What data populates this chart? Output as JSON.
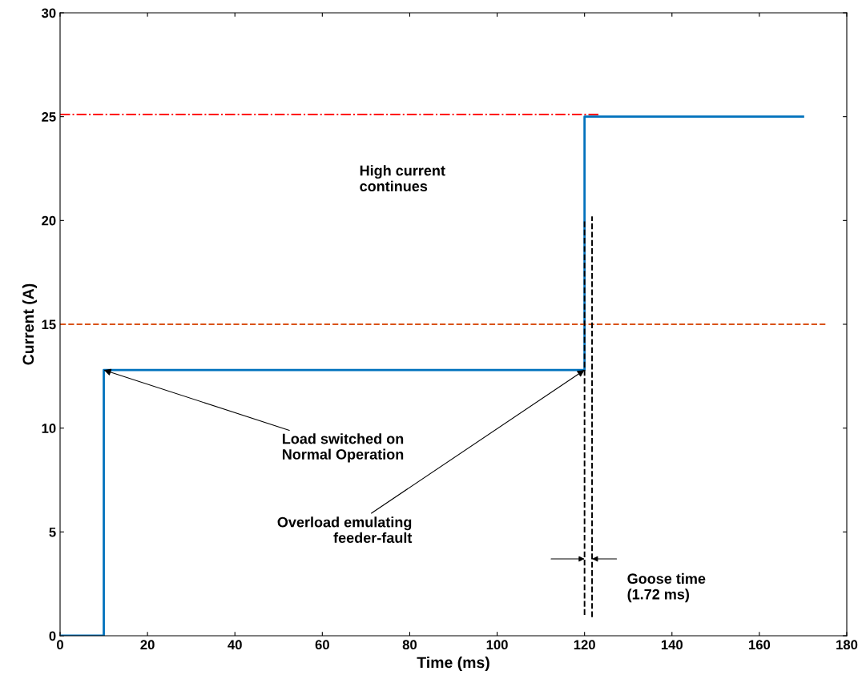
{
  "chart_data": {
    "type": "step",
    "xlabel": "Time (ms)",
    "ylabel": "Current (A)",
    "xlim": [
      0,
      180
    ],
    "xticks": [
      0,
      20,
      40,
      60,
      80,
      100,
      120,
      140,
      160,
      180
    ],
    "ylim": [
      0,
      30
    ],
    "yticks": [
      0,
      5,
      10,
      15,
      20,
      25,
      30
    ],
    "grid": false,
    "legend": false,
    "marker": "none",
    "series": [
      {
        "color": "#0072bd",
        "line_style": "solid",
        "x": [
          0,
          10,
          120,
          170
        ],
        "values": [
          0,
          12.8,
          25,
          25
        ]
      },
      {
        "type": "line",
        "color": "#d95319",
        "line_style": "dashed",
        "x": [
          0,
          175.4
        ],
        "values": [
          15,
          15
        ]
      },
      {
        "type": "line",
        "color": "#ff0000",
        "line_style": "dashdot",
        "x": [
          0,
          123.7
        ],
        "values": [
          25.1,
          25.1
        ]
      },
      {
        "type": "line",
        "color": "#000000",
        "line_style": "dashed",
        "x": [
          120,
          120
        ],
        "values": [
          1,
          20
        ]
      },
      {
        "type": "line",
        "color": "#000000",
        "line_style": "dashed",
        "x": [
          121.72,
          121.72
        ],
        "values": [
          0.9,
          20.2
        ]
      }
    ],
    "annotations": [
      {
        "text": "Load switched on\nNormal Operation",
        "x": 10,
        "y": 12.8
      },
      {
        "text": "Overload emulating\nfeeder-fault",
        "x": 120,
        "y": 12.8
      },
      "High current\ncontinues",
      "Goose time\n(1.72 ms)"
    ]
  }
}
